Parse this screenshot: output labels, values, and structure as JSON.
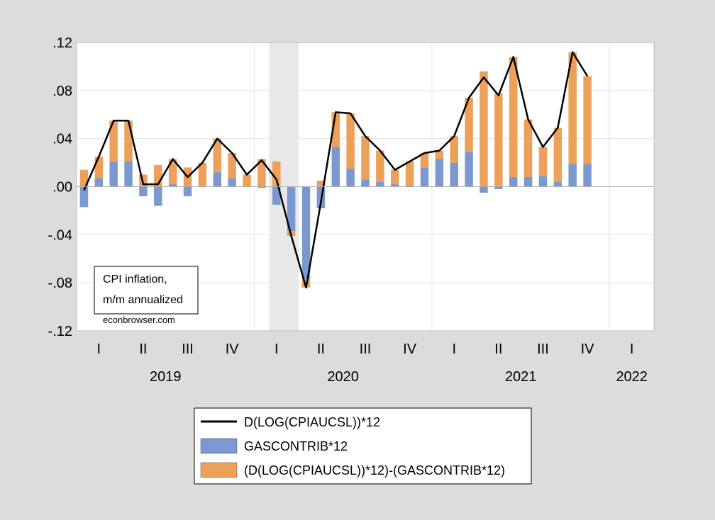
{
  "chart_data": {
    "type": "bar",
    "stacked": true,
    "ylim": [
      -0.12,
      0.12
    ],
    "yticks": [
      {
        "value": 0.12,
        "label": ".12"
      },
      {
        "value": 0.08,
        "label": ".08"
      },
      {
        "value": 0.04,
        "label": ".04"
      },
      {
        "value": 0.0,
        "label": ".00"
      },
      {
        "value": -0.04,
        "label": "-.04"
      },
      {
        "value": -0.08,
        "label": "-.08"
      },
      {
        "value": -0.12,
        "label": "-.12"
      }
    ],
    "x": [
      "2019-01",
      "2019-02",
      "2019-03",
      "2019-04",
      "2019-05",
      "2019-06",
      "2019-07",
      "2019-08",
      "2019-09",
      "2019-10",
      "2019-11",
      "2019-12",
      "2020-01",
      "2020-02",
      "2020-03",
      "2020-04",
      "2020-05",
      "2020-06",
      "2020-07",
      "2020-08",
      "2020-09",
      "2020-10",
      "2020-11",
      "2020-12",
      "2021-01",
      "2021-02",
      "2021-03",
      "2021-04",
      "2021-05",
      "2021-06",
      "2021-07",
      "2021-08",
      "2021-09",
      "2021-10",
      "2021-11",
      "2021-12"
    ],
    "quarter_ticks": [
      {
        "label": "I",
        "start": 0
      },
      {
        "label": "II",
        "start": 3
      },
      {
        "label": "III",
        "start": 6
      },
      {
        "label": "IV",
        "start": 9
      },
      {
        "label": "I",
        "start": 12
      },
      {
        "label": "II",
        "start": 15
      },
      {
        "label": "III",
        "start": 18
      },
      {
        "label": "IV",
        "start": 21
      },
      {
        "label": "I",
        "start": 24
      },
      {
        "label": "II",
        "start": 27
      },
      {
        "label": "III",
        "start": 30
      },
      {
        "label": "IV",
        "start": 33
      },
      {
        "label": "I",
        "start": 36
      }
    ],
    "year_labels": [
      {
        "label": "2019",
        "start": 0
      },
      {
        "label": "2020",
        "start": 12
      },
      {
        "label": "2021",
        "start": 24
      },
      {
        "label": "2022",
        "start": 36
      }
    ],
    "x_slots": 39,
    "recession_shading": {
      "start": 13,
      "end": 15
    },
    "series": [
      {
        "name": "GASCONTRIB*12",
        "kind": "bar",
        "color": "#7b99d0",
        "values": [
          -0.017,
          0.007,
          0.021,
          0.021,
          -0.008,
          -0.016,
          0.002,
          -0.008,
          0.0,
          0.012,
          0.007,
          0.0,
          -0.001,
          -0.015,
          -0.037,
          -0.077,
          -0.018,
          0.033,
          0.015,
          0.006,
          0.004,
          0.002,
          0.001,
          0.016,
          0.023,
          0.02,
          0.029,
          -0.005,
          -0.002,
          0.008,
          0.008,
          0.009,
          0.004,
          0.019,
          0.019,
          null
        ]
      },
      {
        "name": "(D(LOG(CPIAUCSL))*12)-(GASCONTRIB*12)",
        "kind": "bar",
        "color": "#eda05a",
        "values": [
          0.014,
          0.018,
          0.034,
          0.034,
          0.01,
          0.018,
          0.021,
          0.016,
          0.02,
          0.028,
          0.021,
          0.01,
          0.023,
          0.021,
          -0.004,
          -0.007,
          0.005,
          0.029,
          0.046,
          0.036,
          0.026,
          0.012,
          0.02,
          0.012,
          0.007,
          0.022,
          0.045,
          0.096,
          0.078,
          0.1,
          0.048,
          0.024,
          0.045,
          0.093,
          0.073,
          null
        ]
      },
      {
        "name": "D(LOG(CPIAUCSL))*12",
        "kind": "line",
        "color": "#000000",
        "values": [
          -0.003,
          0.025,
          0.055,
          0.055,
          0.002,
          0.002,
          0.023,
          0.008,
          0.02,
          0.04,
          0.028,
          0.01,
          0.022,
          0.006,
          -0.041,
          -0.084,
          -0.013,
          0.062,
          0.061,
          0.042,
          0.03,
          0.014,
          0.021,
          0.028,
          0.03,
          0.042,
          0.074,
          0.091,
          0.076,
          0.108,
          0.056,
          0.033,
          0.049,
          0.112,
          0.092,
          null
        ]
      }
    ],
    "legend_order": [
      "D(LOG(CPIAUCSL))*12",
      "GASCONTRIB*12",
      "(D(LOG(CPIAUCSL))*12)-(GASCONTRIB*12)"
    ],
    "legend_placement": "bottom",
    "annotation": [
      "CPI inflation,",
      "m/m annualized"
    ],
    "credit": "econbrowser.com",
    "grid": true
  }
}
